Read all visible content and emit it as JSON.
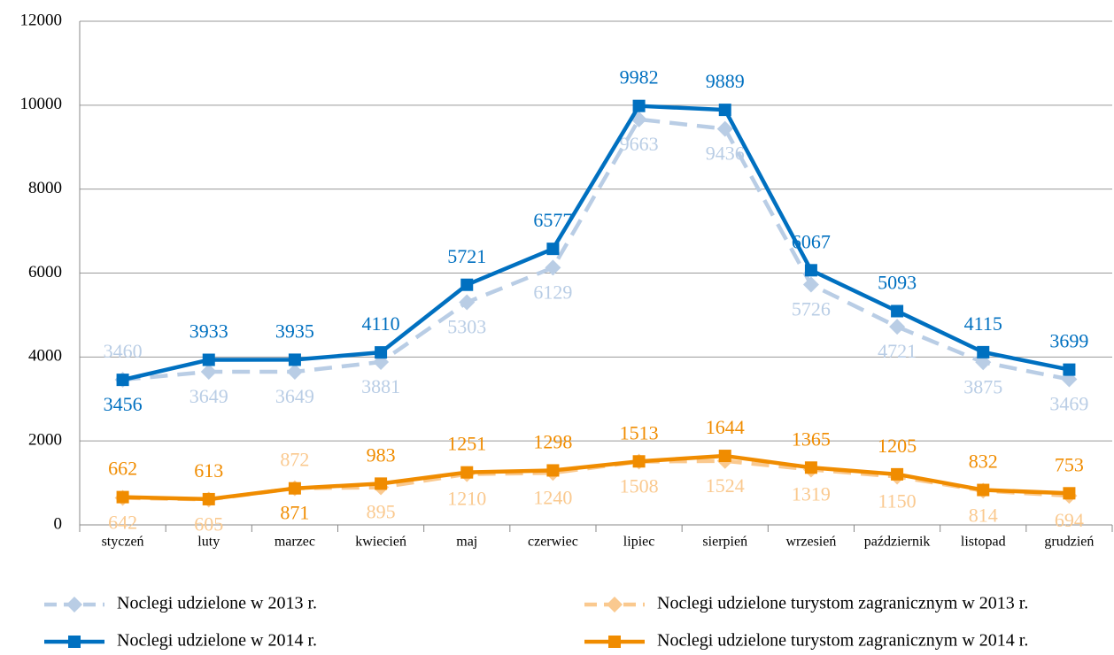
{
  "chart_data": {
    "type": "line",
    "categories": [
      "styczeń",
      "luty",
      "marzec",
      "kwiecień",
      "maj",
      "czerwiec",
      "lipiec",
      "sierpień",
      "wrzesień",
      "październik",
      "listopad",
      "grudzień"
    ],
    "series": [
      {
        "name": "Noclegi udzielone w 2013 r.",
        "color": "#b9cde5",
        "dashed": true,
        "marker": "diamond",
        "values": [
          3460,
          3649,
          3649,
          3881,
          5303,
          6129,
          9663,
          9436,
          5726,
          4721,
          3875,
          3469
        ]
      },
      {
        "name": "Noclegi udzielone turystom zagranicznym w 2013 r.",
        "color": "#fac98f",
        "dashed": true,
        "marker": "diamond",
        "values": [
          642,
          605,
          872,
          895,
          1210,
          1240,
          1508,
          1524,
          1319,
          1150,
          814,
          694
        ]
      },
      {
        "name": "Noclegi udzielone w 2014 r.",
        "color": "#0070c0",
        "dashed": false,
        "marker": "square",
        "values": [
          3456,
          3933,
          3935,
          4110,
          5721,
          6577,
          9982,
          9889,
          6067,
          5093,
          4115,
          3699
        ]
      },
      {
        "name": "Noclegi udzielone turystom zagranicznym w 2014 r.",
        "color": "#f08c00",
        "dashed": false,
        "marker": "square",
        "values": [
          662,
          613,
          871,
          983,
          1251,
          1298,
          1513,
          1644,
          1365,
          1205,
          832,
          753
        ]
      }
    ],
    "ylim": [
      0,
      12000
    ],
    "yticks": [
      0,
      2000,
      4000,
      6000,
      8000,
      10000,
      12000
    ],
    "grid": true,
    "legend": "bottom"
  }
}
